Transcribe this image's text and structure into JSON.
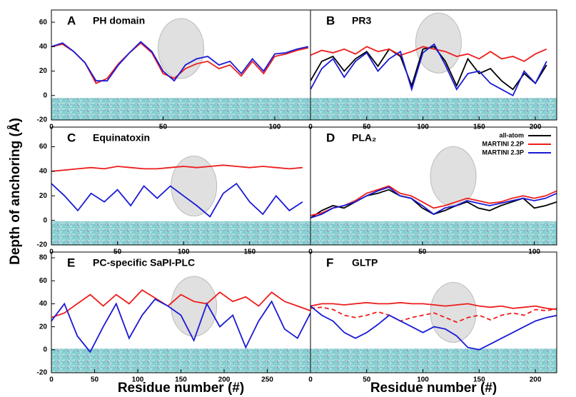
{
  "chart_data": [
    {
      "type": "line",
      "label": "A",
      "title": "PH domain",
      "xlim": [
        0,
        116
      ],
      "xticks": [
        0,
        50,
        100
      ],
      "ylim": [
        -20,
        70
      ],
      "yticks": [
        -20,
        0,
        20,
        40,
        60
      ],
      "x": [
        0,
        5,
        10,
        15,
        20,
        25,
        30,
        35,
        40,
        45,
        50,
        55,
        60,
        65,
        70,
        75,
        80,
        85,
        90,
        95,
        100,
        105,
        110,
        115
      ],
      "series": [
        {
          "color": "#ee1c1c",
          "values": [
            40,
            42,
            36,
            27,
            10,
            14,
            26,
            35,
            43,
            35,
            18,
            14,
            22,
            26,
            28,
            22,
            25,
            16,
            28,
            18,
            32,
            34,
            37,
            39
          ]
        },
        {
          "color": "#1a1ad6",
          "values": [
            40,
            43,
            36,
            27,
            12,
            12,
            25,
            35,
            44,
            36,
            20,
            12,
            25,
            30,
            32,
            25,
            28,
            18,
            30,
            20,
            34,
            35,
            38,
            40
          ]
        }
      ]
    },
    {
      "type": "line",
      "label": "B",
      "title": "PR3",
      "xlim": [
        0,
        219
      ],
      "xticks": [
        0,
        50,
        100,
        150,
        200
      ],
      "ylim": [
        -20,
        70
      ],
      "x": [
        0,
        10,
        20,
        30,
        40,
        50,
        60,
        70,
        80,
        90,
        100,
        110,
        120,
        130,
        140,
        150,
        160,
        170,
        180,
        190,
        200,
        210
      ],
      "series": [
        {
          "color": "#000000",
          "values": [
            12,
            28,
            32,
            20,
            30,
            36,
            24,
            38,
            32,
            8,
            38,
            40,
            28,
            8,
            30,
            18,
            22,
            12,
            5,
            18,
            10,
            25
          ]
        },
        {
          "color": "#ee1c1c",
          "values": [
            33,
            37,
            35,
            38,
            34,
            40,
            36,
            38,
            33,
            36,
            40,
            38,
            36,
            32,
            34,
            30,
            36,
            30,
            32,
            28,
            34,
            38
          ]
        },
        {
          "color": "#1a1ad6",
          "values": [
            5,
            22,
            30,
            15,
            28,
            35,
            20,
            30,
            36,
            5,
            35,
            42,
            25,
            5,
            18,
            20,
            10,
            5,
            0,
            20,
            10,
            28
          ]
        }
      ]
    },
    {
      "type": "line",
      "label": "C",
      "title": "Equinatoxin",
      "ylabel": "Depth of anchoring (Å)",
      "xlim": [
        0,
        196
      ],
      "xticks": [
        0,
        50,
        100,
        150
      ],
      "ylim": [
        -20,
        76
      ],
      "yticks": [
        -20,
        0,
        20,
        40,
        60
      ],
      "x": [
        0,
        10,
        20,
        30,
        40,
        50,
        60,
        70,
        80,
        90,
        100,
        110,
        120,
        130,
        140,
        150,
        160,
        170,
        180,
        190
      ],
      "series": [
        {
          "color": "#ee1c1c",
          "values": [
            40,
            41,
            42,
            43,
            42,
            44,
            43,
            42,
            42,
            43,
            44,
            43,
            44,
            45,
            44,
            43,
            44,
            43,
            42,
            43
          ]
        },
        {
          "color": "#1a1ad6",
          "values": [
            30,
            20,
            8,
            22,
            15,
            25,
            12,
            28,
            18,
            28,
            20,
            12,
            3,
            22,
            30,
            15,
            5,
            20,
            8,
            15
          ]
        }
      ]
    },
    {
      "type": "line",
      "label": "D",
      "title": "PLA₂",
      "legend": "upper right",
      "xlim": [
        0,
        110
      ],
      "xticks": [
        0,
        50,
        100
      ],
      "ylim": [
        -20,
        76
      ],
      "x": [
        0,
        5,
        10,
        15,
        20,
        25,
        30,
        35,
        40,
        45,
        50,
        55,
        60,
        65,
        70,
        75,
        80,
        85,
        90,
        95,
        100,
        105,
        110
      ],
      "series": [
        {
          "name": "all-atom",
          "color": "#000000",
          "values": [
            2,
            8,
            12,
            10,
            15,
            20,
            22,
            25,
            20,
            18,
            10,
            5,
            8,
            12,
            15,
            10,
            8,
            12,
            15,
            18,
            10,
            12,
            15
          ]
        },
        {
          "name": "MARTINI 2.2P",
          "color": "#ee1c1c",
          "values": [
            4,
            6,
            10,
            12,
            16,
            22,
            25,
            28,
            22,
            20,
            15,
            10,
            12,
            15,
            18,
            16,
            14,
            15,
            18,
            20,
            18,
            20,
            24
          ]
        },
        {
          "name": "MARTINI 2.3P",
          "color": "#1a1ad6",
          "values": [
            2,
            5,
            10,
            12,
            15,
            20,
            24,
            27,
            20,
            18,
            12,
            5,
            10,
            12,
            16,
            14,
            12,
            14,
            16,
            18,
            16,
            18,
            22
          ]
        }
      ]
    },
    {
      "type": "line",
      "label": "E",
      "title": "PC-specific SaPI-PLC",
      "xlabel": "Residue number (#)",
      "xlim": [
        0,
        300
      ],
      "xticks": [
        0,
        50,
        100,
        150,
        200,
        250
      ],
      "ylim": [
        -20,
        85
      ],
      "yticks": [
        -20,
        0,
        20,
        40,
        60,
        80
      ],
      "x": [
        0,
        15,
        30,
        45,
        60,
        75,
        90,
        105,
        120,
        135,
        150,
        165,
        180,
        195,
        210,
        225,
        240,
        255,
        270,
        285,
        300
      ],
      "series": [
        {
          "color": "#ee1c1c",
          "values": [
            28,
            32,
            40,
            48,
            38,
            48,
            40,
            52,
            45,
            38,
            48,
            42,
            40,
            50,
            42,
            46,
            38,
            50,
            42,
            38,
            34
          ]
        },
        {
          "color": "#1a1ad6",
          "values": [
            25,
            40,
            12,
            -2,
            20,
            40,
            10,
            30,
            44,
            38,
            30,
            8,
            40,
            20,
            30,
            2,
            25,
            42,
            18,
            10,
            32
          ]
        }
      ]
    },
    {
      "type": "line",
      "label": "F",
      "title": "GLTP",
      "xlabel": "Residue number (#)",
      "xlim": [
        0,
        219
      ],
      "xticks": [
        0,
        50,
        100,
        150,
        200
      ],
      "ylim": [
        -20,
        85
      ],
      "x": [
        0,
        10,
        20,
        30,
        40,
        50,
        60,
        70,
        80,
        90,
        100,
        110,
        120,
        130,
        140,
        150,
        160,
        170,
        180,
        190,
        200,
        210,
        220
      ],
      "series": [
        {
          "color": "#ee1c1c",
          "values": [
            38,
            40,
            40,
            39,
            40,
            41,
            40,
            40,
            41,
            40,
            40,
            39,
            38,
            39,
            40,
            38,
            37,
            38,
            36,
            37,
            38,
            36,
            35
          ]
        },
        {
          "color": "#ee1c1c",
          "dash": true,
          "values": [
            36,
            37,
            35,
            30,
            28,
            30,
            33,
            30,
            25,
            28,
            30,
            32,
            28,
            24,
            28,
            30,
            26,
            30,
            32,
            30,
            35,
            34,
            36
          ]
        },
        {
          "color": "#1a1ad6",
          "values": [
            38,
            30,
            25,
            15,
            10,
            15,
            22,
            30,
            25,
            20,
            15,
            20,
            18,
            12,
            2,
            0,
            5,
            10,
            15,
            20,
            25,
            28,
            30
          ]
        }
      ]
    }
  ]
}
